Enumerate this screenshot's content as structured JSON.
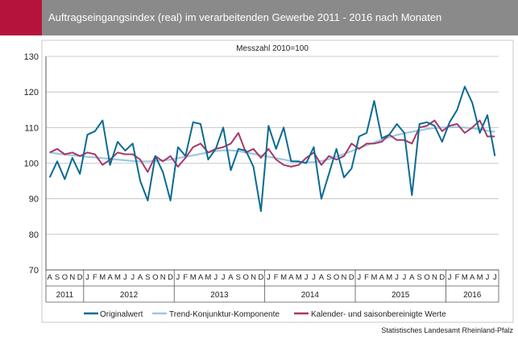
{
  "header": {
    "title": "Auftragseingangsindex (real) im verarbeitenden Gewerbe 2011 - 2016 nach Monaten"
  },
  "footer": {
    "source": "Statistisches Landesamt Rheinland-Pfalz"
  },
  "colors": {
    "header_bg": "#8a8a8a",
    "accent": "#b5133c",
    "originalwert": "#0b6a93",
    "trend": "#9cc9dc",
    "saisonbereinigt": "#a8376a"
  },
  "chart_data": {
    "type": "line",
    "title": "",
    "subtitle": "Messzahl 2010=100",
    "xlabel": "",
    "ylabel": "",
    "ylim": [
      70,
      130
    ],
    "yticks": [
      70,
      80,
      90,
      100,
      110,
      120,
      130
    ],
    "grid": true,
    "legend_position": "bottom",
    "x": [
      "2011-08",
      "2011-09",
      "2011-10",
      "2011-11",
      "2011-12",
      "2012-01",
      "2012-02",
      "2012-03",
      "2012-04",
      "2012-05",
      "2012-06",
      "2012-07",
      "2012-08",
      "2012-09",
      "2012-10",
      "2012-11",
      "2012-12",
      "2013-01",
      "2013-02",
      "2013-03",
      "2013-04",
      "2013-05",
      "2013-06",
      "2013-07",
      "2013-08",
      "2013-09",
      "2013-10",
      "2013-11",
      "2013-12",
      "2014-01",
      "2014-02",
      "2014-03",
      "2014-04",
      "2014-05",
      "2014-06",
      "2014-07",
      "2014-08",
      "2014-09",
      "2014-10",
      "2014-11",
      "2014-12",
      "2015-01",
      "2015-02",
      "2015-03",
      "2015-04",
      "2015-05",
      "2015-06",
      "2015-07",
      "2015-08",
      "2015-09",
      "2015-10",
      "2015-11",
      "2015-12",
      "2016-01",
      "2016-02",
      "2016-03",
      "2016-04",
      "2016-05",
      "2016-06",
      "2016-07"
    ],
    "month_labels": [
      "A",
      "S",
      "O",
      "N",
      "D",
      "J",
      "F",
      "M",
      "A",
      "M",
      "J",
      "J",
      "A",
      "S",
      "O",
      "N",
      "D",
      "J",
      "F",
      "M",
      "A",
      "M",
      "J",
      "J",
      "A",
      "S",
      "O",
      "N",
      "D",
      "J",
      "F",
      "M",
      "A",
      "M",
      "J",
      "J",
      "A",
      "S",
      "O",
      "N",
      "D",
      "J",
      "F",
      "M",
      "A",
      "M",
      "J",
      "J",
      "A",
      "S",
      "O",
      "N",
      "D",
      "J",
      "F",
      "M",
      "A",
      "M",
      "J",
      "J"
    ],
    "year_labels": [
      {
        "label": "2011",
        "start": 0,
        "end": 4
      },
      {
        "label": "2012",
        "start": 5,
        "end": 16
      },
      {
        "label": "2013",
        "start": 17,
        "end": 28
      },
      {
        "label": "2014",
        "start": 29,
        "end": 40
      },
      {
        "label": "2015",
        "start": 41,
        "end": 52
      },
      {
        "label": "2016",
        "start": 53,
        "end": 59
      }
    ],
    "series": [
      {
        "name": "Originalwert",
        "color": "#0b6a93",
        "values": [
          96,
          100.5,
          95.5,
          101.5,
          97,
          108,
          109,
          112,
          99.5,
          106,
          103.5,
          105.5,
          95,
          89.5,
          102,
          97.5,
          89.5,
          104.5,
          102,
          111.5,
          111,
          101,
          104,
          110,
          98,
          104,
          103.5,
          99,
          86.5,
          110.5,
          104,
          110,
          100.5,
          100.5,
          100,
          104.5,
          90,
          97,
          104,
          96,
          98.5,
          107.5,
          108.5,
          117.5,
          107,
          108,
          111,
          108.5,
          91,
          111,
          111.5,
          110.5,
          106,
          111.5,
          115,
          121.5,
          117,
          108.5,
          113.5,
          102
        ]
      },
      {
        "name": "Trend-Konjunktur-Komponente",
        "color": "#9cc9dc",
        "values": [
          103,
          102.7,
          102.4,
          102.2,
          102,
          101.8,
          101.6,
          101.4,
          101.2,
          101,
          100.8,
          100.6,
          100.5,
          100.5,
          100.6,
          100.8,
          101,
          101.4,
          101.8,
          102.2,
          102.6,
          103,
          103.4,
          103.6,
          103.6,
          103.4,
          103,
          102.6,
          102.2,
          101.8,
          101.4,
          101,
          100.6,
          100.3,
          100.2,
          100.3,
          100.6,
          101.1,
          101.8,
          102.6,
          103.4,
          104.2,
          105,
          105.8,
          106.6,
          107.3,
          107.9,
          108.4,
          108.8,
          109.2,
          109.6,
          109.9,
          110,
          110.1,
          110.1,
          110,
          109.8,
          109.5,
          109.1,
          108.8
        ]
      },
      {
        "name": "Kalender- und saisonbereinigte Werte",
        "color": "#a8376a",
        "values": [
          103,
          104,
          102.5,
          103,
          102,
          103,
          102.5,
          99.5,
          101,
          103,
          102.5,
          102.5,
          101,
          97.5,
          102,
          100.5,
          102,
          99,
          101.5,
          104.5,
          105.5,
          103,
          104,
          104.5,
          105.5,
          108.5,
          103,
          104,
          101.5,
          104,
          101,
          99.5,
          99,
          99.5,
          101.5,
          103,
          99.5,
          102,
          101,
          102,
          105.5,
          104,
          105.5,
          105.5,
          106,
          108,
          106.5,
          106.5,
          105.5,
          110,
          110.5,
          112,
          109,
          110.5,
          111,
          108.5,
          110,
          112,
          107.5,
          107.5
        ]
      }
    ]
  }
}
